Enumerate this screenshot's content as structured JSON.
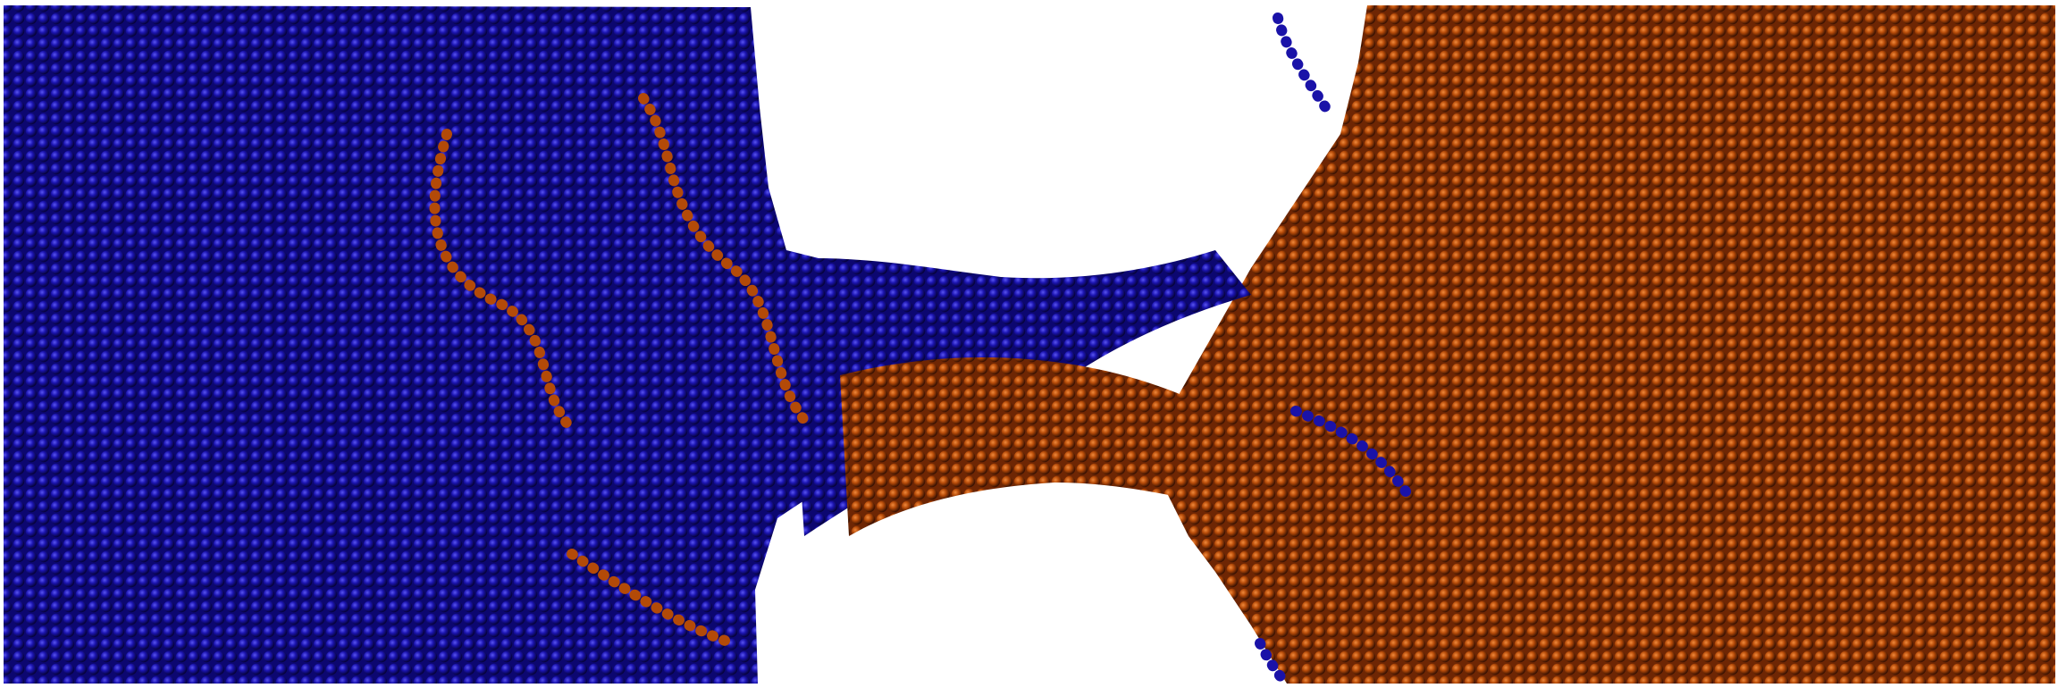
{
  "scene": {
    "kind": "molecular-simulation-render",
    "background_color": "#ffffff",
    "species": [
      {
        "id": "blue-polymer",
        "color": "#1a12a8",
        "highlight": "#4a44e8",
        "shadow": "#05023a"
      },
      {
        "id": "orange-polymer",
        "color": "#b34a08",
        "highlight": "#e8782c",
        "shadow": "#3a1202"
      }
    ]
  }
}
